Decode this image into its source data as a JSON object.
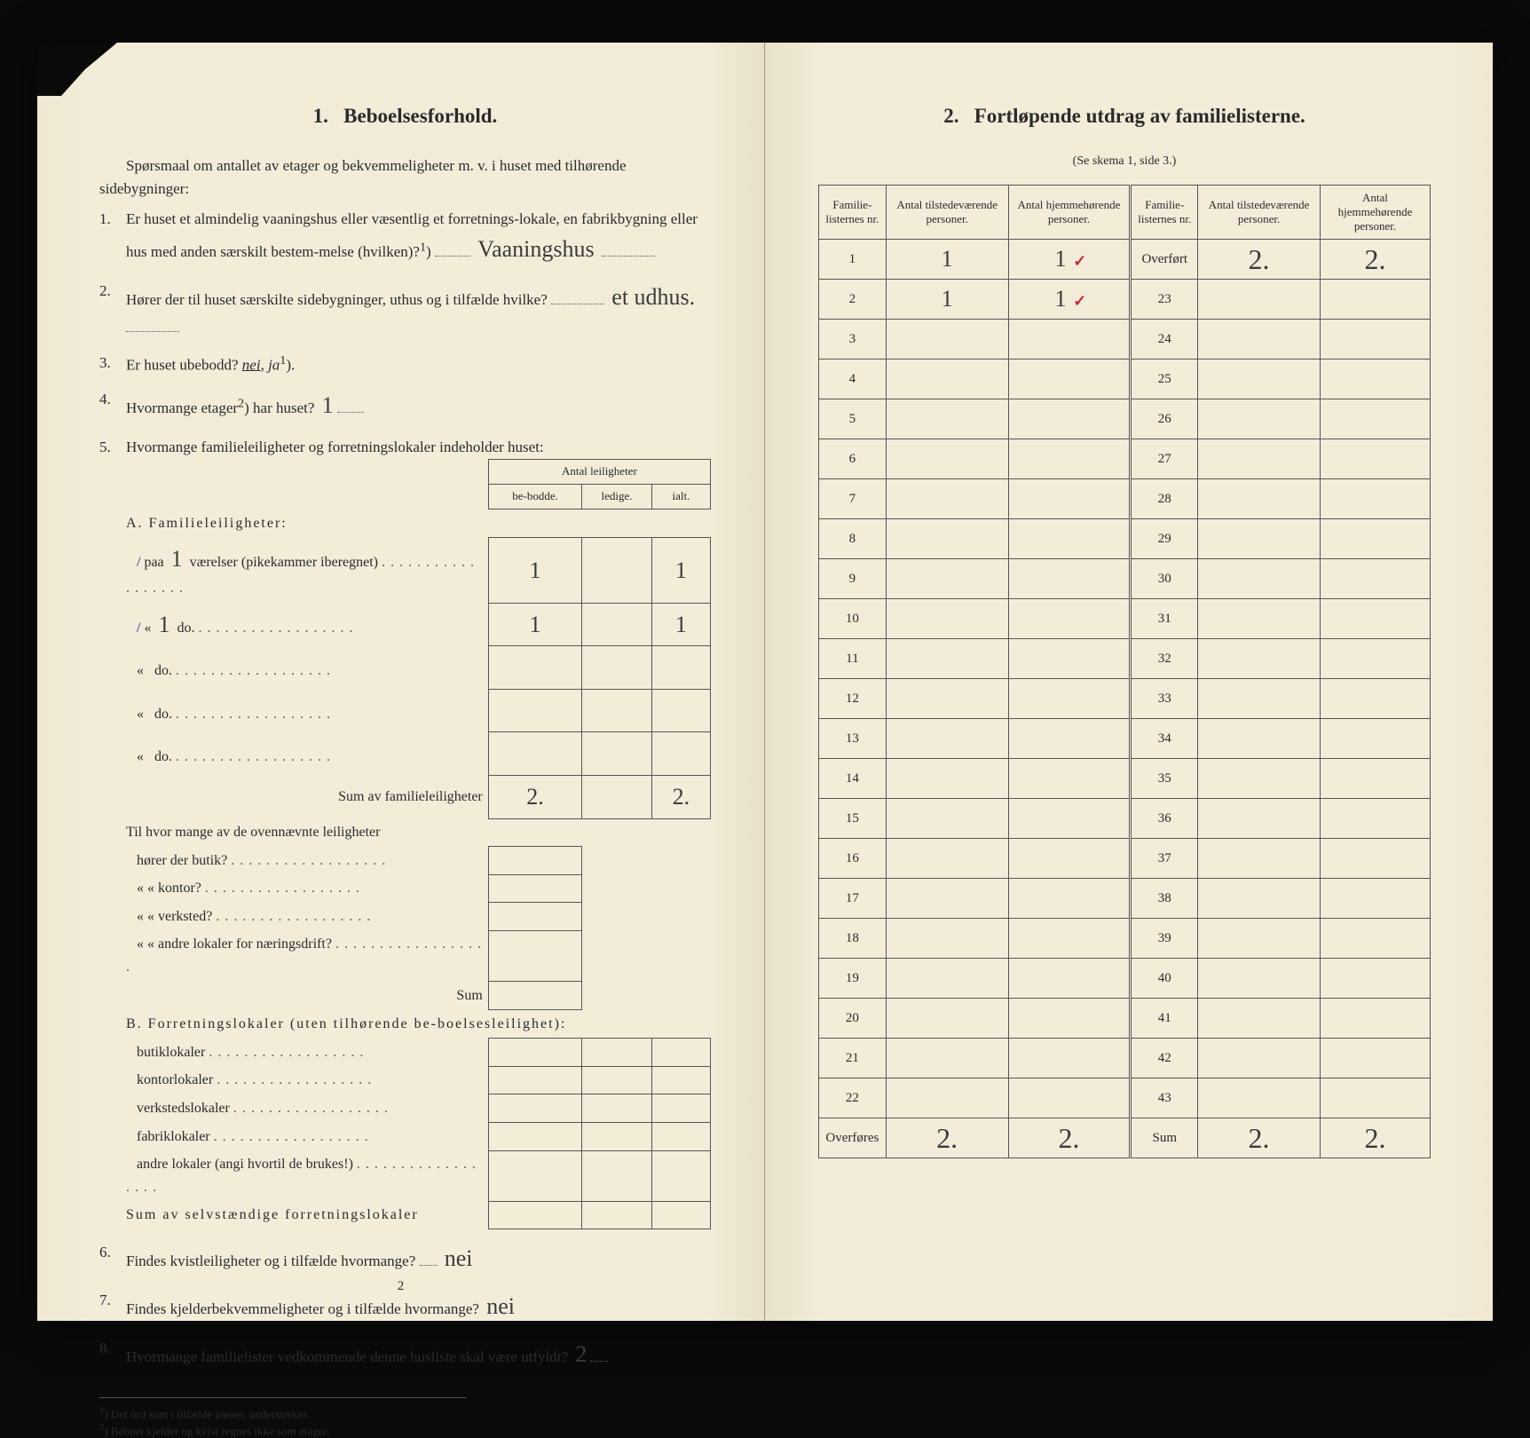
{
  "left": {
    "section_num": "1.",
    "section_title": "Beboelsesforhold.",
    "intro": "Spørsmaal om antallet av etager og bekvemmeligheter m. v. i huset med tilhørende sidebygninger:",
    "q1": {
      "num": "1.",
      "text_a": "Er huset et almindelig vaaningshus eller væsentlig et forretnings-lokale, en fabrikbygning eller hus med anden særskilt bestem-melse (hvilken)?",
      "sup": "1",
      "answer": "Vaaningshus"
    },
    "q2": {
      "num": "2.",
      "text": "Hører der til huset særskilte sidebygninger, uthus og i tilfælde hvilke?",
      "answer": "et udhus."
    },
    "q3": {
      "num": "3.",
      "text_a": "Er huset ubebodd?",
      "opt_nei": "nei",
      "opt_ja": "ja",
      "sup": "1",
      "close": ")."
    },
    "q4": {
      "num": "4.",
      "text_a": "Hvormange etager",
      "sup": "2",
      "text_b": ") har huset?",
      "answer": "1"
    },
    "q5": {
      "num": "5.",
      "text": "Hvormange familieleiligheter og forretningslokaler indeholder huset:"
    },
    "leil_table": {
      "header_group": "Antal leiligheter",
      "headers": [
        "be-bodde.",
        "ledige.",
        "ialt."
      ],
      "section_a_title": "A. Familieleiligheter:",
      "rows_a": [
        {
          "label_prefix": "paa",
          "rooms": "1",
          "label_suffix": "værelser (pikekammer iberegnet)",
          "bebodde": "1",
          "ledige": "",
          "ialt": "1",
          "tick": true
        },
        {
          "label_prefix": "«",
          "rooms": "1",
          "label_suffix": "do.",
          "bebodde": "1",
          "ledige": "",
          "ialt": "1",
          "tick": true
        },
        {
          "label_prefix": "«",
          "rooms": "",
          "label_suffix": "do.",
          "bebodde": "",
          "ledige": "",
          "ialt": ""
        },
        {
          "label_prefix": "«",
          "rooms": "",
          "label_suffix": "do.",
          "bebodde": "",
          "ledige": "",
          "ialt": ""
        },
        {
          "label_prefix": "«",
          "rooms": "",
          "label_suffix": "do.",
          "bebodde": "",
          "ledige": "",
          "ialt": ""
        }
      ],
      "sum_a_label": "Sum av familieleiligheter",
      "sum_a": {
        "bebodde": "2.",
        "ledige": "",
        "ialt": "2."
      },
      "mid_q": "Til hvor mange av de ovennævnte leiligheter",
      "mid_rows": [
        "hører der butik?",
        "«     «   kontor?",
        "«     «   verksted?",
        "«     «   andre lokaler for næringsdrift?"
      ],
      "mid_sum": "Sum",
      "section_b_title": "B. Forretningslokaler (uten tilhørende be-boelsesleilighet):",
      "rows_b": [
        "butiklokaler",
        "kontorlokaler",
        "verkstedslokaler",
        "fabriklokaler",
        "andre lokaler (angi hvortil de brukes!)"
      ],
      "sum_b_label": "Sum av selvstændige forretningslokaler"
    },
    "q6": {
      "num": "6.",
      "text": "Findes kvistleiligheter og i tilfælde hvormange?",
      "answer": "nei"
    },
    "q7": {
      "num": "7.",
      "text": "Findes kjelderbekvemmeligheter og i tilfælde hvormange?",
      "answer": "nei"
    },
    "q8": {
      "num": "8.",
      "text": "Hvormange familielister vedkommende denne husliste skal være utfyldt?",
      "answer": "2"
    },
    "footnote1": "Det ord som i tilfælde passer, understrekes.",
    "footnote1_sup": "1",
    "footnote2": "Beboet kjelder og kvist regnes ikke som etager.",
    "footnote2_sup": "2",
    "page_num": "2"
  },
  "right": {
    "section_num": "2.",
    "section_title": "Fortløpende utdrag av familielisterne.",
    "sub_caption": "(Se skema 1, side 3.)",
    "headers": [
      "Familie-listernes nr.",
      "Antal tilstedeværende personer.",
      "Antal hjemmehørende personer.",
      "Familie-listernes nr.",
      "Antal tilstedeværende personer.",
      "Antal hjemmehørende personer."
    ],
    "rows": [
      {
        "n1": "1",
        "v1": "1",
        "v2": "1",
        "check": true,
        "n2": "Overført",
        "v3": "2.",
        "v4": "2."
      },
      {
        "n1": "2",
        "v1": "1",
        "v2": "1",
        "check": true,
        "n2": "23",
        "v3": "",
        "v4": ""
      },
      {
        "n1": "3",
        "v1": "",
        "v2": "",
        "n2": "24",
        "v3": "",
        "v4": ""
      },
      {
        "n1": "4",
        "v1": "",
        "v2": "",
        "n2": "25",
        "v3": "",
        "v4": ""
      },
      {
        "n1": "5",
        "v1": "",
        "v2": "",
        "n2": "26",
        "v3": "",
        "v4": ""
      },
      {
        "n1": "6",
        "v1": "",
        "v2": "",
        "n2": "27",
        "v3": "",
        "v4": ""
      },
      {
        "n1": "7",
        "v1": "",
        "v2": "",
        "n2": "28",
        "v3": "",
        "v4": ""
      },
      {
        "n1": "8",
        "v1": "",
        "v2": "",
        "n2": "29",
        "v3": "",
        "v4": ""
      },
      {
        "n1": "9",
        "v1": "",
        "v2": "",
        "n2": "30",
        "v3": "",
        "v4": ""
      },
      {
        "n1": "10",
        "v1": "",
        "v2": "",
        "n2": "31",
        "v3": "",
        "v4": ""
      },
      {
        "n1": "11",
        "v1": "",
        "v2": "",
        "n2": "32",
        "v3": "",
        "v4": ""
      },
      {
        "n1": "12",
        "v1": "",
        "v2": "",
        "n2": "33",
        "v3": "",
        "v4": ""
      },
      {
        "n1": "13",
        "v1": "",
        "v2": "",
        "n2": "34",
        "v3": "",
        "v4": ""
      },
      {
        "n1": "14",
        "v1": "",
        "v2": "",
        "n2": "35",
        "v3": "",
        "v4": ""
      },
      {
        "n1": "15",
        "v1": "",
        "v2": "",
        "n2": "36",
        "v3": "",
        "v4": ""
      },
      {
        "n1": "16",
        "v1": "",
        "v2": "",
        "n2": "37",
        "v3": "",
        "v4": ""
      },
      {
        "n1": "17",
        "v1": "",
        "v2": "",
        "n2": "38",
        "v3": "",
        "v4": ""
      },
      {
        "n1": "18",
        "v1": "",
        "v2": "",
        "n2": "39",
        "v3": "",
        "v4": ""
      },
      {
        "n1": "19",
        "v1": "",
        "v2": "",
        "n2": "40",
        "v3": "",
        "v4": ""
      },
      {
        "n1": "20",
        "v1": "",
        "v2": "",
        "n2": "41",
        "v3": "",
        "v4": ""
      },
      {
        "n1": "21",
        "v1": "",
        "v2": "",
        "n2": "42",
        "v3": "",
        "v4": ""
      },
      {
        "n1": "22",
        "v1": "",
        "v2": "",
        "n2": "43",
        "v3": "",
        "v4": ""
      }
    ],
    "footer": {
      "label1": "Overføres",
      "v1": "2.",
      "v2": "2.",
      "label2": "Sum",
      "v3": "2.",
      "v4": "2."
    }
  },
  "colors": {
    "paper": "#f2ecd9",
    "ink": "#2b2b2b",
    "hand": "#3b3b3b",
    "red": "#c23",
    "bg": "#0a0a0a"
  }
}
